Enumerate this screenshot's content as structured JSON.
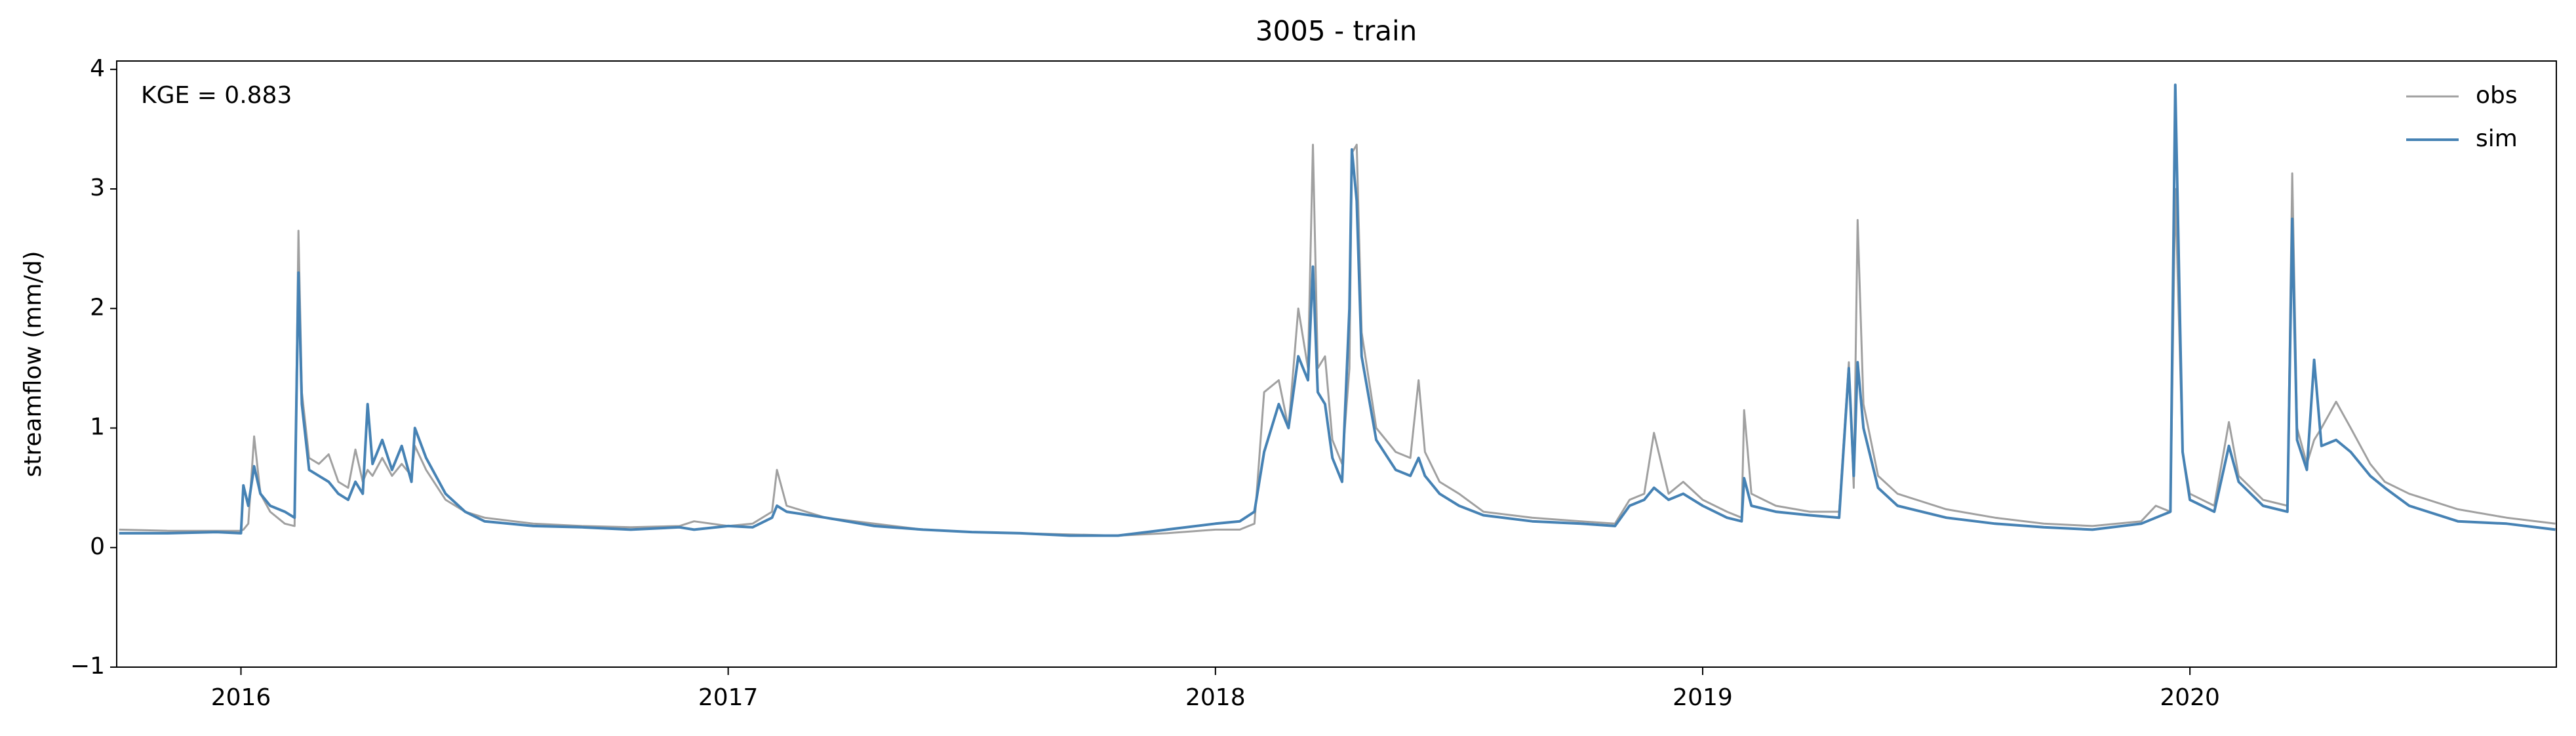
{
  "chart_data": {
    "type": "line",
    "title": "3005 - train",
    "ylabel": "streamflow (mm/d)",
    "annotation": "KGE = 0.883",
    "legend": "upper right",
    "xlim": [
      2015.745,
      2020.752
    ],
    "xticks": [
      2016,
      2017,
      2018,
      2019,
      2020
    ],
    "ylim": [
      -1,
      4.07
    ],
    "yticks": [
      {
        "value": -1,
        "label": "−1"
      },
      0,
      1,
      2,
      3,
      4
    ],
    "x": [
      2015.75,
      2015.85,
      2015.95,
      2016.0,
      2016.005,
      2016.015,
      2016.027,
      2016.04,
      2016.06,
      2016.09,
      2016.11,
      2016.118,
      2016.125,
      2016.14,
      2016.16,
      2016.18,
      2016.2,
      2016.22,
      2016.235,
      2016.25,
      2016.26,
      2016.27,
      2016.29,
      2016.31,
      2016.33,
      2016.35,
      2016.357,
      2016.38,
      2016.42,
      2016.46,
      2016.5,
      2016.6,
      2016.7,
      2016.8,
      2016.9,
      2016.93,
      2017.0,
      2017.05,
      2017.09,
      2017.1,
      2017.12,
      2017.2,
      2017.3,
      2017.4,
      2017.5,
      2017.6,
      2017.7,
      2017.8,
      2017.9,
      2018.0,
      2018.05,
      2018.08,
      2018.1,
      2018.13,
      2018.15,
      2018.17,
      2018.19,
      2018.2,
      2018.21,
      2018.225,
      2018.24,
      2018.26,
      2018.275,
      2018.28,
      2018.29,
      2018.3,
      2018.33,
      2018.37,
      2018.4,
      2018.417,
      2018.43,
      2018.46,
      2018.5,
      2018.55,
      2018.65,
      2018.75,
      2018.82,
      2018.85,
      2018.88,
      2018.9,
      2018.93,
      2018.96,
      2019.0,
      2019.05,
      2019.08,
      2019.085,
      2019.1,
      2019.15,
      2019.22,
      2019.28,
      2019.3,
      2019.31,
      2019.318,
      2019.33,
      2019.36,
      2019.4,
      2019.5,
      2019.6,
      2019.7,
      2019.8,
      2019.9,
      2019.93,
      2019.96,
      2019.97,
      2019.985,
      2020.0,
      2020.05,
      2020.08,
      2020.1,
      2020.15,
      2020.2,
      2020.21,
      2020.22,
      2020.24,
      2020.255,
      2020.27,
      2020.3,
      2020.33,
      2020.37,
      2020.4,
      2020.45,
      2020.55,
      2020.65,
      2020.75
    ],
    "series": [
      {
        "name": "obs",
        "color": "#a0a0a0",
        "width": 3,
        "values": [
          0.15,
          0.14,
          0.14,
          0.14,
          0.15,
          0.2,
          0.93,
          0.45,
          0.3,
          0.2,
          0.18,
          2.65,
          1.3,
          0.75,
          0.7,
          0.78,
          0.55,
          0.5,
          0.82,
          0.55,
          0.65,
          0.6,
          0.75,
          0.6,
          0.7,
          0.6,
          0.85,
          0.65,
          0.4,
          0.3,
          0.25,
          0.2,
          0.18,
          0.17,
          0.18,
          0.22,
          0.18,
          0.2,
          0.3,
          0.65,
          0.35,
          0.25,
          0.2,
          0.15,
          0.13,
          0.12,
          0.11,
          0.1,
          0.12,
          0.15,
          0.15,
          0.2,
          1.3,
          1.4,
          1.0,
          2.0,
          1.5,
          3.37,
          1.5,
          1.6,
          0.9,
          0.7,
          1.5,
          3.3,
          3.37,
          1.8,
          1.0,
          0.8,
          0.75,
          1.4,
          0.8,
          0.55,
          0.45,
          0.3,
          0.25,
          0.22,
          0.2,
          0.4,
          0.45,
          0.96,
          0.45,
          0.55,
          0.4,
          0.3,
          0.25,
          1.15,
          0.45,
          0.35,
          0.3,
          0.3,
          1.55,
          0.5,
          2.74,
          1.2,
          0.6,
          0.45,
          0.32,
          0.25,
          0.2,
          0.18,
          0.22,
          0.35,
          0.3,
          3.0,
          0.8,
          0.45,
          0.35,
          1.05,
          0.6,
          0.4,
          0.35,
          3.13,
          1.0,
          0.7,
          0.9,
          1.0,
          1.22,
          1.0,
          0.7,
          0.55,
          0.45,
          0.32,
          0.25,
          0.2
        ]
      },
      {
        "name": "sim",
        "color": "#4682b4",
        "width": 4,
        "values": [
          0.12,
          0.12,
          0.13,
          0.12,
          0.52,
          0.35,
          0.68,
          0.45,
          0.35,
          0.3,
          0.25,
          2.3,
          1.2,
          0.65,
          0.6,
          0.55,
          0.45,
          0.4,
          0.55,
          0.45,
          1.2,
          0.7,
          0.9,
          0.65,
          0.85,
          0.55,
          1.0,
          0.75,
          0.45,
          0.3,
          0.22,
          0.18,
          0.17,
          0.15,
          0.17,
          0.15,
          0.18,
          0.17,
          0.25,
          0.35,
          0.3,
          0.25,
          0.18,
          0.15,
          0.13,
          0.12,
          0.1,
          0.1,
          0.15,
          0.2,
          0.22,
          0.3,
          0.8,
          1.2,
          1.0,
          1.6,
          1.4,
          2.35,
          1.3,
          1.2,
          0.75,
          0.55,
          2.0,
          3.33,
          2.9,
          1.6,
          0.9,
          0.65,
          0.6,
          0.75,
          0.6,
          0.45,
          0.35,
          0.27,
          0.22,
          0.2,
          0.18,
          0.35,
          0.4,
          0.5,
          0.4,
          0.45,
          0.35,
          0.25,
          0.22,
          0.58,
          0.35,
          0.3,
          0.27,
          0.25,
          1.5,
          0.6,
          1.55,
          1.0,
          0.5,
          0.35,
          0.25,
          0.2,
          0.17,
          0.15,
          0.2,
          0.25,
          0.3,
          3.87,
          0.8,
          0.4,
          0.3,
          0.85,
          0.55,
          0.35,
          0.3,
          2.75,
          0.9,
          0.65,
          1.57,
          0.85,
          0.9,
          0.8,
          0.6,
          0.5,
          0.35,
          0.22,
          0.2,
          0.15
        ]
      }
    ]
  }
}
